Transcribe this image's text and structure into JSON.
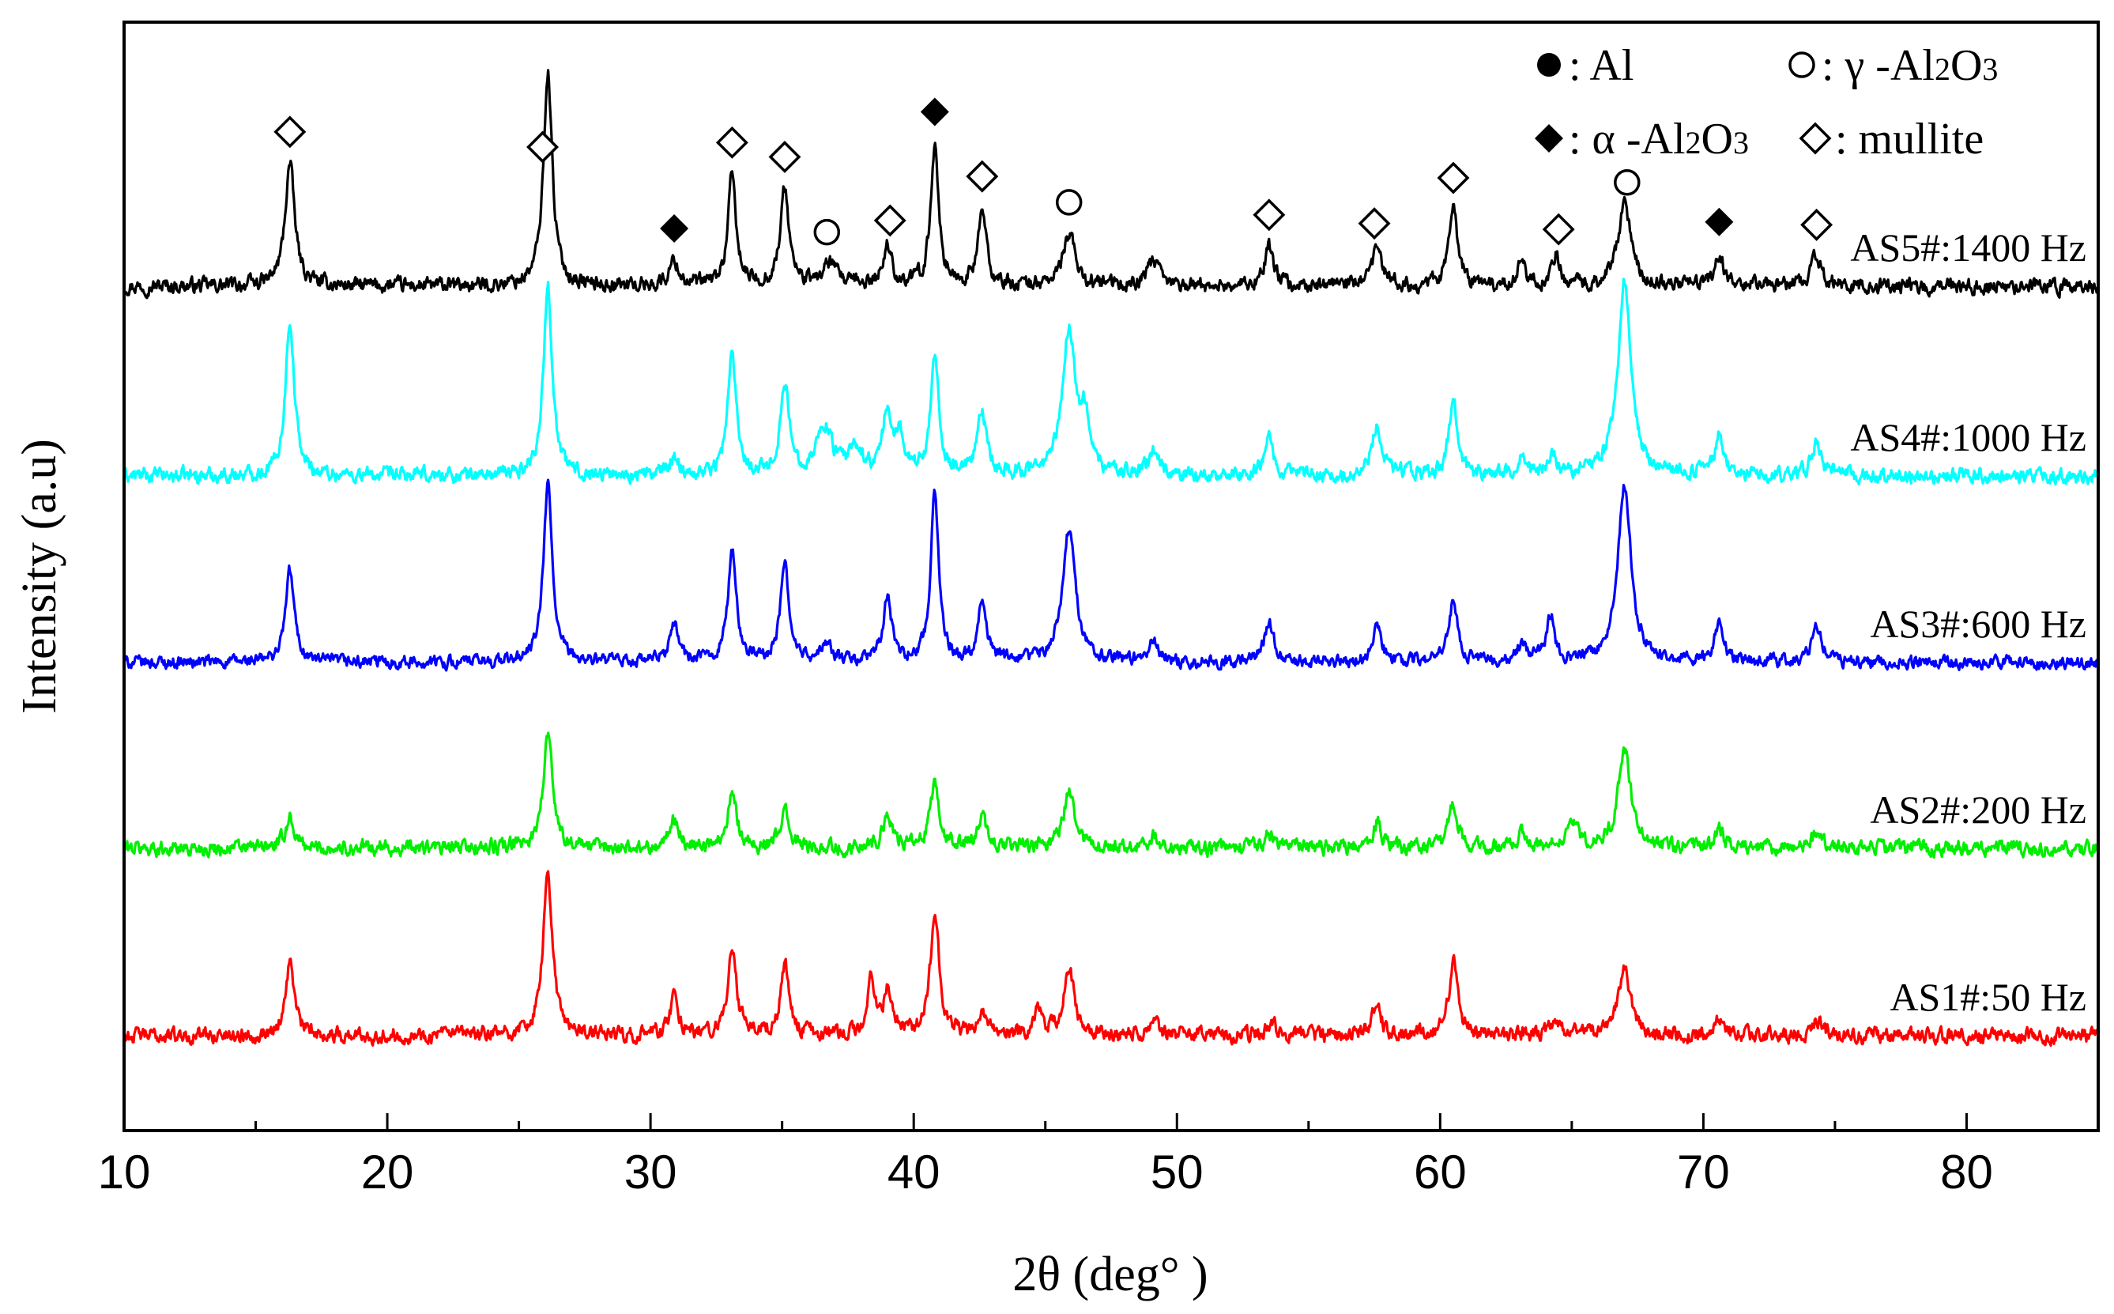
{
  "chart_data": {
    "type": "line",
    "title": "",
    "xlabel": "2θ (deg° )",
    "ylabel": "Intensity (a.u)",
    "xlim": [
      10,
      85
    ],
    "x_ticks": [
      10,
      20,
      30,
      40,
      50,
      60,
      70,
      80
    ],
    "x_tick_labels": [
      "10",
      "20",
      "30",
      "40",
      "50",
      "60",
      "70",
      "80"
    ],
    "y_ticks": "none",
    "grid": false,
    "series": [
      {
        "name": "AS5#:1400 Hz",
        "label": "AS5#:1400 Hz",
        "color": "#000000",
        "offset": 4,
        "noise": 0.06,
        "peaks": [
          [
            16.3,
            1.0,
            0.22
          ],
          [
            26.1,
            1.75,
            0.2
          ],
          [
            30.9,
            0.2,
            0.22
          ],
          [
            33.1,
            0.9,
            0.18
          ],
          [
            35.1,
            0.78,
            0.2
          ],
          [
            36.8,
            0.18,
            0.3
          ],
          [
            39.0,
            0.32,
            0.2
          ],
          [
            40.8,
            1.15,
            0.18
          ],
          [
            42.6,
            0.62,
            0.18
          ],
          [
            45.9,
            0.42,
            0.28
          ],
          [
            49.1,
            0.2,
            0.24
          ],
          [
            53.5,
            0.32,
            0.2
          ],
          [
            57.6,
            0.3,
            0.22
          ],
          [
            60.5,
            0.62,
            0.2
          ],
          [
            63.1,
            0.22,
            0.16
          ],
          [
            64.4,
            0.25,
            0.18
          ],
          [
            67.0,
            0.65,
            0.3
          ],
          [
            70.6,
            0.26,
            0.22
          ],
          [
            74.3,
            0.24,
            0.24
          ]
        ]
      },
      {
        "name": "AS4#:1000 Hz",
        "label": "AS4#:1000 Hz",
        "color": "#00ffff",
        "offset": 3,
        "noise": 0.06,
        "peaks": [
          [
            16.3,
            1.28,
            0.2
          ],
          [
            26.1,
            1.55,
            0.2
          ],
          [
            30.9,
            0.15,
            0.2
          ],
          [
            33.1,
            0.98,
            0.2
          ],
          [
            35.1,
            0.72,
            0.2
          ],
          [
            36.6,
            0.4,
            0.35
          ],
          [
            37.8,
            0.2,
            0.3
          ],
          [
            39.0,
            0.5,
            0.2
          ],
          [
            39.5,
            0.3,
            0.2
          ],
          [
            40.8,
            1.0,
            0.18
          ],
          [
            42.6,
            0.5,
            0.2
          ],
          [
            45.9,
            1.18,
            0.3
          ],
          [
            46.5,
            0.4,
            0.2
          ],
          [
            49.1,
            0.2,
            0.22
          ],
          [
            53.5,
            0.34,
            0.2
          ],
          [
            57.6,
            0.4,
            0.24
          ],
          [
            60.5,
            0.6,
            0.2
          ],
          [
            63.1,
            0.15,
            0.2
          ],
          [
            64.3,
            0.15,
            0.2
          ],
          [
            67.0,
            1.6,
            0.3
          ],
          [
            70.6,
            0.32,
            0.2
          ],
          [
            74.3,
            0.25,
            0.22
          ]
        ]
      },
      {
        "name": "AS3#:600 Hz",
        "label": "AS3#:600 Hz",
        "color": "#0000ff",
        "offset": 2,
        "noise": 0.05,
        "peaks": [
          [
            16.3,
            0.75,
            0.2
          ],
          [
            26.1,
            1.45,
            0.2
          ],
          [
            30.9,
            0.3,
            0.22
          ],
          [
            33.1,
            0.88,
            0.2
          ],
          [
            35.1,
            0.78,
            0.2
          ],
          [
            36.7,
            0.15,
            0.2
          ],
          [
            39.0,
            0.5,
            0.2
          ],
          [
            40.8,
            1.4,
            0.18
          ],
          [
            42.6,
            0.54,
            0.18
          ],
          [
            45.9,
            1.08,
            0.3
          ],
          [
            49.1,
            0.16,
            0.25
          ],
          [
            53.5,
            0.35,
            0.2
          ],
          [
            57.6,
            0.32,
            0.2
          ],
          [
            60.5,
            0.5,
            0.2
          ],
          [
            63.1,
            0.16,
            0.2
          ],
          [
            64.2,
            0.38,
            0.18
          ],
          [
            67.0,
            1.45,
            0.3
          ],
          [
            70.6,
            0.32,
            0.2
          ],
          [
            74.3,
            0.3,
            0.22
          ]
        ]
      },
      {
        "name": "AS2#:200 Hz",
        "label": "AS2#:200 Hz",
        "color": "#00ee00",
        "offset": 1,
        "noise": 0.06,
        "peaks": [
          [
            16.3,
            0.25,
            0.2
          ],
          [
            26.1,
            0.92,
            0.22
          ],
          [
            30.9,
            0.24,
            0.2
          ],
          [
            33.1,
            0.48,
            0.2
          ],
          [
            35.1,
            0.3,
            0.2
          ],
          [
            39.0,
            0.28,
            0.22
          ],
          [
            40.8,
            0.5,
            0.2
          ],
          [
            42.6,
            0.24,
            0.2
          ],
          [
            45.9,
            0.48,
            0.24
          ],
          [
            49.1,
            0.1,
            0.25
          ],
          [
            53.5,
            0.1,
            0.2
          ],
          [
            57.6,
            0.22,
            0.2
          ],
          [
            60.5,
            0.38,
            0.2
          ],
          [
            63.1,
            0.12,
            0.2
          ],
          [
            65.0,
            0.25,
            0.2
          ],
          [
            67.0,
            0.78,
            0.3
          ],
          [
            70.6,
            0.15,
            0.2
          ],
          [
            74.3,
            0.12,
            0.2
          ]
        ]
      },
      {
        "name": "AS1#:50 Hz",
        "label": "AS1#:50 Hz",
        "color": "#ff0000",
        "offset": 0,
        "noise": 0.06,
        "peaks": [
          [
            16.3,
            0.6,
            0.2
          ],
          [
            26.1,
            1.3,
            0.22
          ],
          [
            30.9,
            0.3,
            0.2
          ],
          [
            33.1,
            0.68,
            0.2
          ],
          [
            35.1,
            0.58,
            0.2
          ],
          [
            38.4,
            0.44,
            0.18
          ],
          [
            39.0,
            0.35,
            0.18
          ],
          [
            40.8,
            1.0,
            0.2
          ],
          [
            42.6,
            0.2,
            0.18
          ],
          [
            44.7,
            0.22,
            0.18
          ],
          [
            45.9,
            0.55,
            0.24
          ],
          [
            49.1,
            0.1,
            0.25
          ],
          [
            53.6,
            0.1,
            0.2
          ],
          [
            57.6,
            0.24,
            0.2
          ],
          [
            60.5,
            0.6,
            0.2
          ],
          [
            64.4,
            0.15,
            0.2
          ],
          [
            67.0,
            0.55,
            0.28
          ],
          [
            70.6,
            0.15,
            0.2
          ],
          [
            74.3,
            0.15,
            0.2
          ]
        ]
      }
    ],
    "peak_markers": [
      {
        "x": 16.3,
        "symbol": "mullite"
      },
      {
        "x": 25.9,
        "symbol": "mullite"
      },
      {
        "x": 30.9,
        "symbol": "alpha-Al2O3"
      },
      {
        "x": 33.1,
        "symbol": "mullite"
      },
      {
        "x": 35.1,
        "symbol": "mullite"
      },
      {
        "x": 36.7,
        "symbol": "gamma-Al2O3"
      },
      {
        "x": 39.1,
        "symbol": "mullite"
      },
      {
        "x": 40.8,
        "symbol": "alpha-Al2O3"
      },
      {
        "x": 42.6,
        "symbol": "mullite"
      },
      {
        "x": 45.9,
        "symbol": "gamma-Al2O3"
      },
      {
        "x": 53.5,
        "symbol": "mullite"
      },
      {
        "x": 57.5,
        "symbol": "mullite"
      },
      {
        "x": 60.5,
        "symbol": "mullite"
      },
      {
        "x": 64.5,
        "symbol": "mullite"
      },
      {
        "x": 67.1,
        "symbol": "gamma-Al2O3"
      },
      {
        "x": 70.6,
        "symbol": "alpha-Al2O3"
      },
      {
        "x": 74.3,
        "symbol": "mullite"
      }
    ],
    "legend": {
      "placement": "top-right",
      "entries": [
        {
          "key": "Al",
          "marker": "filled-circle",
          "text": ": Al"
        },
        {
          "key": "gamma-Al2O3",
          "marker": "open-circle",
          "prefix": ": γ  -Al",
          "sub1": "2",
          "mid": "O",
          "sub2": "3"
        },
        {
          "key": "alpha-Al2O3",
          "marker": "filled-diamond",
          "prefix": ": α  -Al",
          "sub1": "2",
          "mid": "O",
          "sub2": "3"
        },
        {
          "key": "mullite",
          "marker": "open-diamond",
          "text": ": mullite"
        }
      ]
    }
  }
}
